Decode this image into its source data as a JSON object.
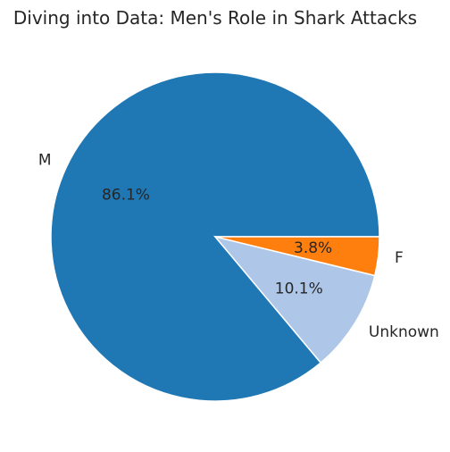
{
  "chart_data": {
    "type": "pie",
    "title": "Diving into Data: Men's Role in Shark Attacks",
    "slices": [
      {
        "label": "M",
        "value": 86.1,
        "pct_label": "86.1%",
        "color": "#1f77b4"
      },
      {
        "label": "F",
        "value": 3.8,
        "pct_label": "3.8%",
        "color": "#ff7f0e"
      },
      {
        "label": "Unknown",
        "value": 10.1,
        "pct_label": "10.1%",
        "color": "#aec7e8"
      }
    ],
    "start_angle_deg": 0,
    "direction": "counterclockwise"
  }
}
